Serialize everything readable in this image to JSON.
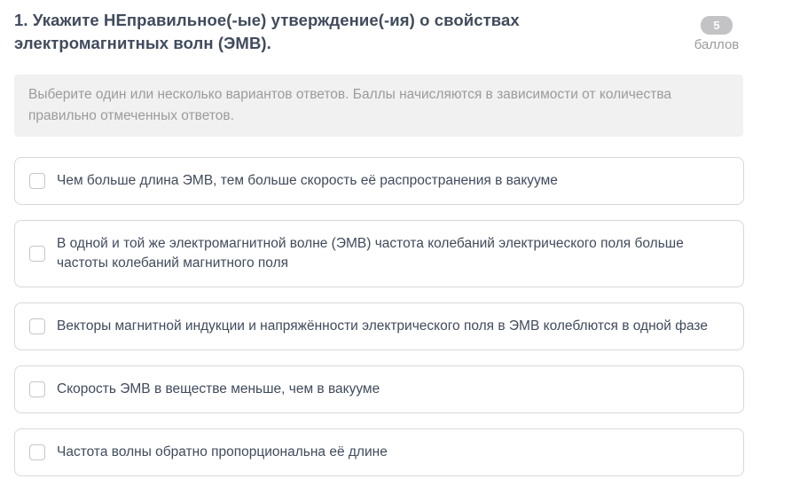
{
  "header": {
    "title": "1. Укажите НЕправильное(-ые) утверждение(-ия) о свойствах электромагнитных волн (ЭМВ).",
    "points_value": "5",
    "points_label": "баллов"
  },
  "instruction": "Выберите один или несколько вариантов ответов. Баллы начисляются в зависимости от количества правильно отмеченных ответов.",
  "options": [
    {
      "label": "Чем больше длина ЭМВ, тем больше скорость её распространения в вакууме",
      "checked": false
    },
    {
      "label": "В одной и той же электромагнитной волне (ЭМВ) частота колебаний электрического поля больше частоты колебаний магнитного поля",
      "checked": false
    },
    {
      "label": "Векторы магнитной индукции и напряжённости электрического поля в ЭМВ колеблются в одной фазе",
      "checked": false
    },
    {
      "label": "Скорость ЭМВ в веществе меньше, чем в вакууме",
      "checked": false
    },
    {
      "label": "Частота волны обратно пропорциональна её длине",
      "checked": false
    }
  ],
  "colors": {
    "text_primary": "#414b5c",
    "text_muted": "#9b9b9d",
    "badge_background": "#c3c3c5",
    "instruction_background": "#f1f1f2",
    "card_border": "#d8d8d8",
    "checkbox_border": "#c6c6c6"
  }
}
